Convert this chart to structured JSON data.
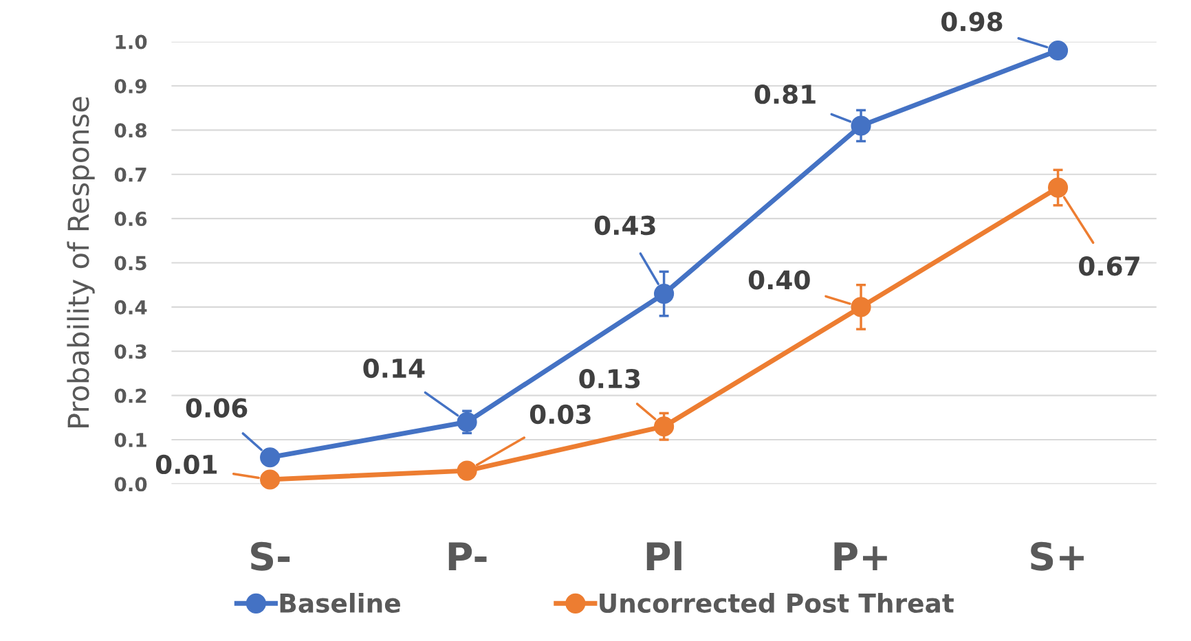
{
  "chart_data": {
    "type": "line",
    "ylabel": "Probability of Response",
    "categories": [
      "S-",
      "P-",
      "Pl",
      "P+",
      "S+"
    ],
    "series": [
      {
        "name": "Baseline",
        "color": "#4472c4",
        "values": [
          0.06,
          0.14,
          0.43,
          0.81,
          0.98
        ],
        "errors": [
          0.01,
          0.025,
          0.05,
          0.035,
          0.01
        ],
        "value_labels": [
          "0.06",
          "0.14",
          "0.43",
          "0.81",
          "0.98"
        ]
      },
      {
        "name": "Uncorrected Post Threat",
        "color": "#ed7d31",
        "values": [
          0.01,
          0.03,
          0.13,
          0.4,
          0.67
        ],
        "errors": [
          0.01,
          0.01,
          0.03,
          0.05,
          0.04
        ],
        "value_labels": [
          "0.01",
          "0.03",
          "0.13",
          "0.40",
          "0.67"
        ]
      }
    ],
    "ylim": [
      0,
      1.0
    ],
    "yticks": [
      {
        "value": 0,
        "label": "0.0"
      },
      {
        "value": 0.1,
        "label": "0.1"
      },
      {
        "value": 0.2,
        "label": "0.2"
      },
      {
        "value": 0.3,
        "label": "0.3"
      },
      {
        "value": 0.4,
        "label": "0.4"
      },
      {
        "value": 0.5,
        "label": "0.5"
      },
      {
        "value": 0.6,
        "label": "0.6"
      },
      {
        "value": 0.7,
        "label": "0.7"
      },
      {
        "value": 0.8,
        "label": "0.8"
      },
      {
        "value": 0.9,
        "label": "0.9"
      },
      {
        "value": 1.0,
        "label": "1.0"
      }
    ],
    "grid": "y",
    "legend": "bottom",
    "marker": "circle",
    "line_style": "solid"
  }
}
